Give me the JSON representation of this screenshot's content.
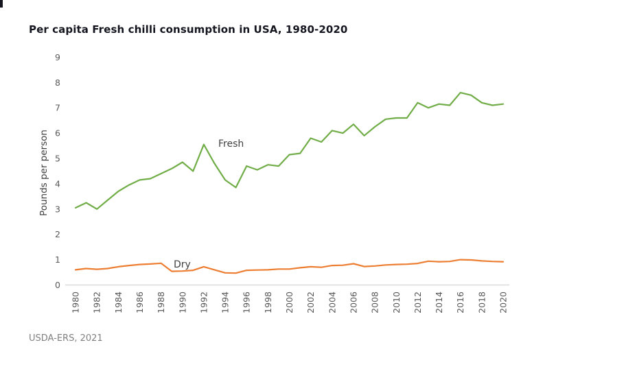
{
  "title": "Per capita Fresh chilli consumption in USA, 1980-2020",
  "source": "USDA-ERS, 2021",
  "colors": {
    "fresh_line": "#70AD47",
    "dry_line": "#ED7D31",
    "axis_text": "#595959",
    "axis_line": "#D9D9D9",
    "title_text": "#15151f",
    "series_label_text": "#404040",
    "source_text": "#7f7f7f"
  },
  "chart_data": {
    "type": "line",
    "title": "Per capita Fresh chilli consumption in USA, 1980-2020",
    "xlabel": "",
    "ylabel": "Pounds per person",
    "ylim": [
      0,
      9
    ],
    "y_ticks": [
      0,
      1,
      2,
      3,
      4,
      5,
      6,
      7,
      8,
      9
    ],
    "grid": false,
    "legend_position": "inline-labels-on-lines",
    "categories": [
      1980,
      1981,
      1982,
      1983,
      1984,
      1985,
      1986,
      1987,
      1988,
      1989,
      1990,
      1991,
      1992,
      1993,
      1994,
      1995,
      1996,
      1997,
      1998,
      1999,
      2000,
      2001,
      2002,
      2003,
      2004,
      2005,
      2006,
      2007,
      2008,
      2009,
      2010,
      2011,
      2012,
      2013,
      2014,
      2015,
      2016,
      2017,
      2018,
      2019,
      2020
    ],
    "x_tick_labels": [
      "1980",
      "1982",
      "1984",
      "1986",
      "1988",
      "1990",
      "1992",
      "1994",
      "1996",
      "1998",
      "2000",
      "2002",
      "2004",
      "2006",
      "2008",
      "2010",
      "2012",
      "2014",
      "2016",
      "2018",
      "2020"
    ],
    "series": [
      {
        "name": "Fresh",
        "color": "#70AD47",
        "values": [
          3.05,
          3.25,
          3.0,
          3.35,
          3.7,
          3.95,
          4.15,
          4.2,
          4.4,
          4.6,
          4.85,
          4.5,
          5.55,
          4.8,
          4.15,
          3.85,
          4.7,
          4.55,
          4.75,
          4.7,
          5.15,
          5.2,
          5.8,
          5.65,
          6.1,
          6.0,
          6.35,
          5.9,
          6.25,
          6.55,
          6.6,
          6.6,
          7.2,
          7.0,
          7.15,
          7.1,
          7.6,
          7.5,
          7.2,
          7.1,
          7.15
        ]
      },
      {
        "name": "Dry",
        "color": "#ED7D31",
        "values": [
          0.6,
          0.65,
          0.62,
          0.65,
          0.72,
          0.77,
          0.81,
          0.83,
          0.86,
          0.54,
          0.55,
          0.58,
          0.72,
          0.6,
          0.48,
          0.47,
          0.58,
          0.59,
          0.6,
          0.63,
          0.63,
          0.68,
          0.72,
          0.7,
          0.77,
          0.78,
          0.84,
          0.73,
          0.75,
          0.79,
          0.81,
          0.82,
          0.85,
          0.94,
          0.92,
          0.93,
          1.0,
          0.99,
          0.95,
          0.93,
          0.92
        ]
      }
    ]
  }
}
